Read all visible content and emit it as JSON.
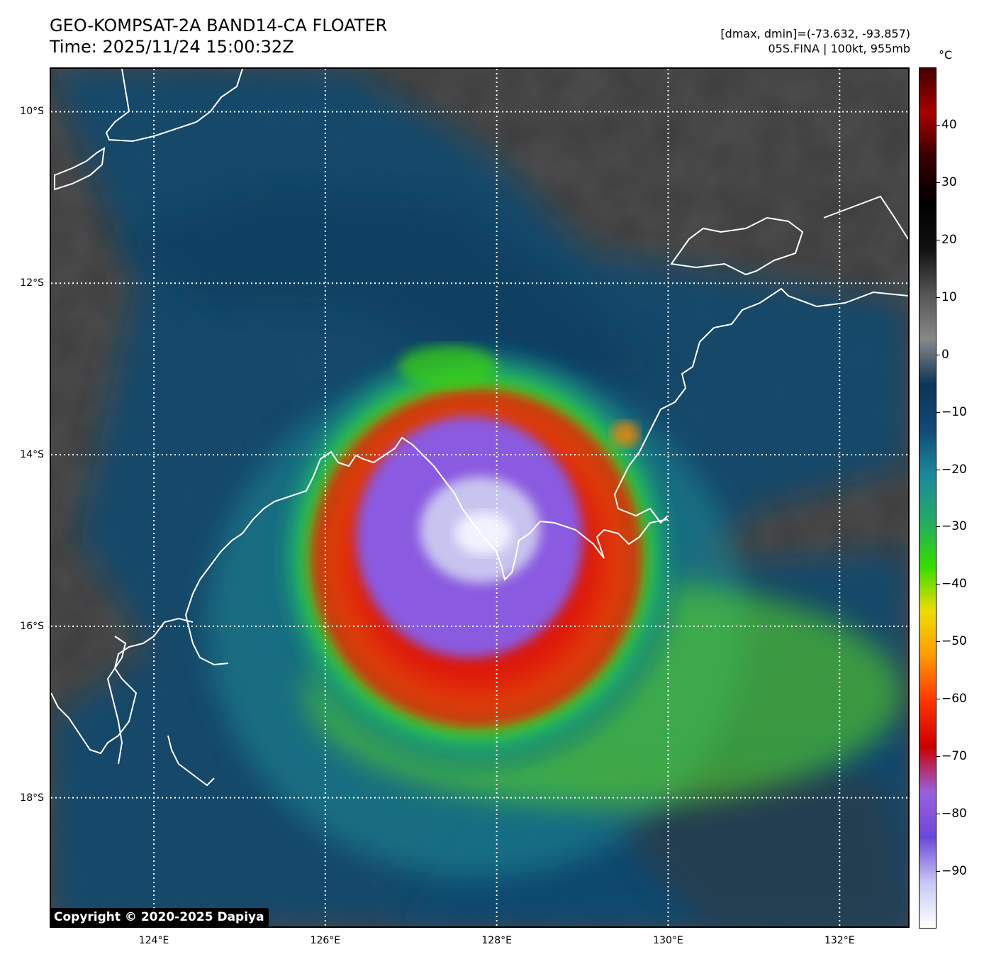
{
  "header": {
    "title_line1": "GEO-KOMPSAT-2A BAND14-CA FLOATER",
    "title_line2": "Time: 2025/11/24 15:00:32Z",
    "info_line1": "[dmax, dmin]=(-73.632, -93.857)",
    "info_line2": "05S.FINA | 100kt, 955mb"
  },
  "colorbar": {
    "unit": "°C",
    "range": [
      -100,
      50
    ],
    "ticks": [
      {
        "value": 40,
        "label": "40"
      },
      {
        "value": 30,
        "label": "30"
      },
      {
        "value": 20,
        "label": "20"
      },
      {
        "value": 10,
        "label": "10"
      },
      {
        "value": 0,
        "label": "0"
      },
      {
        "value": -10,
        "label": "−10"
      },
      {
        "value": -20,
        "label": "−20"
      },
      {
        "value": -30,
        "label": "−30"
      },
      {
        "value": -40,
        "label": "−40"
      },
      {
        "value": -50,
        "label": "−50"
      },
      {
        "value": -60,
        "label": "−60"
      },
      {
        "value": -70,
        "label": "−70"
      },
      {
        "value": -80,
        "label": "−80"
      },
      {
        "value": -90,
        "label": "−90"
      }
    ],
    "colors": [
      "#ffffff",
      "#c8c8f5",
      "#6a48d8",
      "#9a60e0",
      "#cc0000",
      "#ff3300",
      "#ff9900",
      "#eedd00",
      "#33dd00",
      "#22aa66",
      "#1a8a9a",
      "#104a78",
      "#0c3456",
      "#888888",
      "#555555",
      "#111111",
      "#000000",
      "#330000",
      "#aa0000",
      "#440000"
    ]
  },
  "map": {
    "lon_range": [
      122.8,
      132.8
    ],
    "lat_range": [
      -19.5,
      -9.5
    ],
    "lat_lines": [
      {
        "value": -10,
        "label": "10°S"
      },
      {
        "value": -12,
        "label": "12°S"
      },
      {
        "value": -14,
        "label": "14°S"
      },
      {
        "value": -16,
        "label": "16°S"
      },
      {
        "value": -18,
        "label": "18°S"
      }
    ],
    "lon_lines": [
      {
        "value": 124,
        "label": "124°E"
      },
      {
        "value": 126,
        "label": "126°E"
      },
      {
        "value": 128,
        "label": "128°E"
      },
      {
        "value": 130,
        "label": "130°E"
      },
      {
        "value": 132,
        "label": "132°E"
      }
    ],
    "storm_center": {
      "lon": 127.7,
      "lat": -14.9
    }
  },
  "copyright": "Copyright © 2020-2025 Dapiya"
}
